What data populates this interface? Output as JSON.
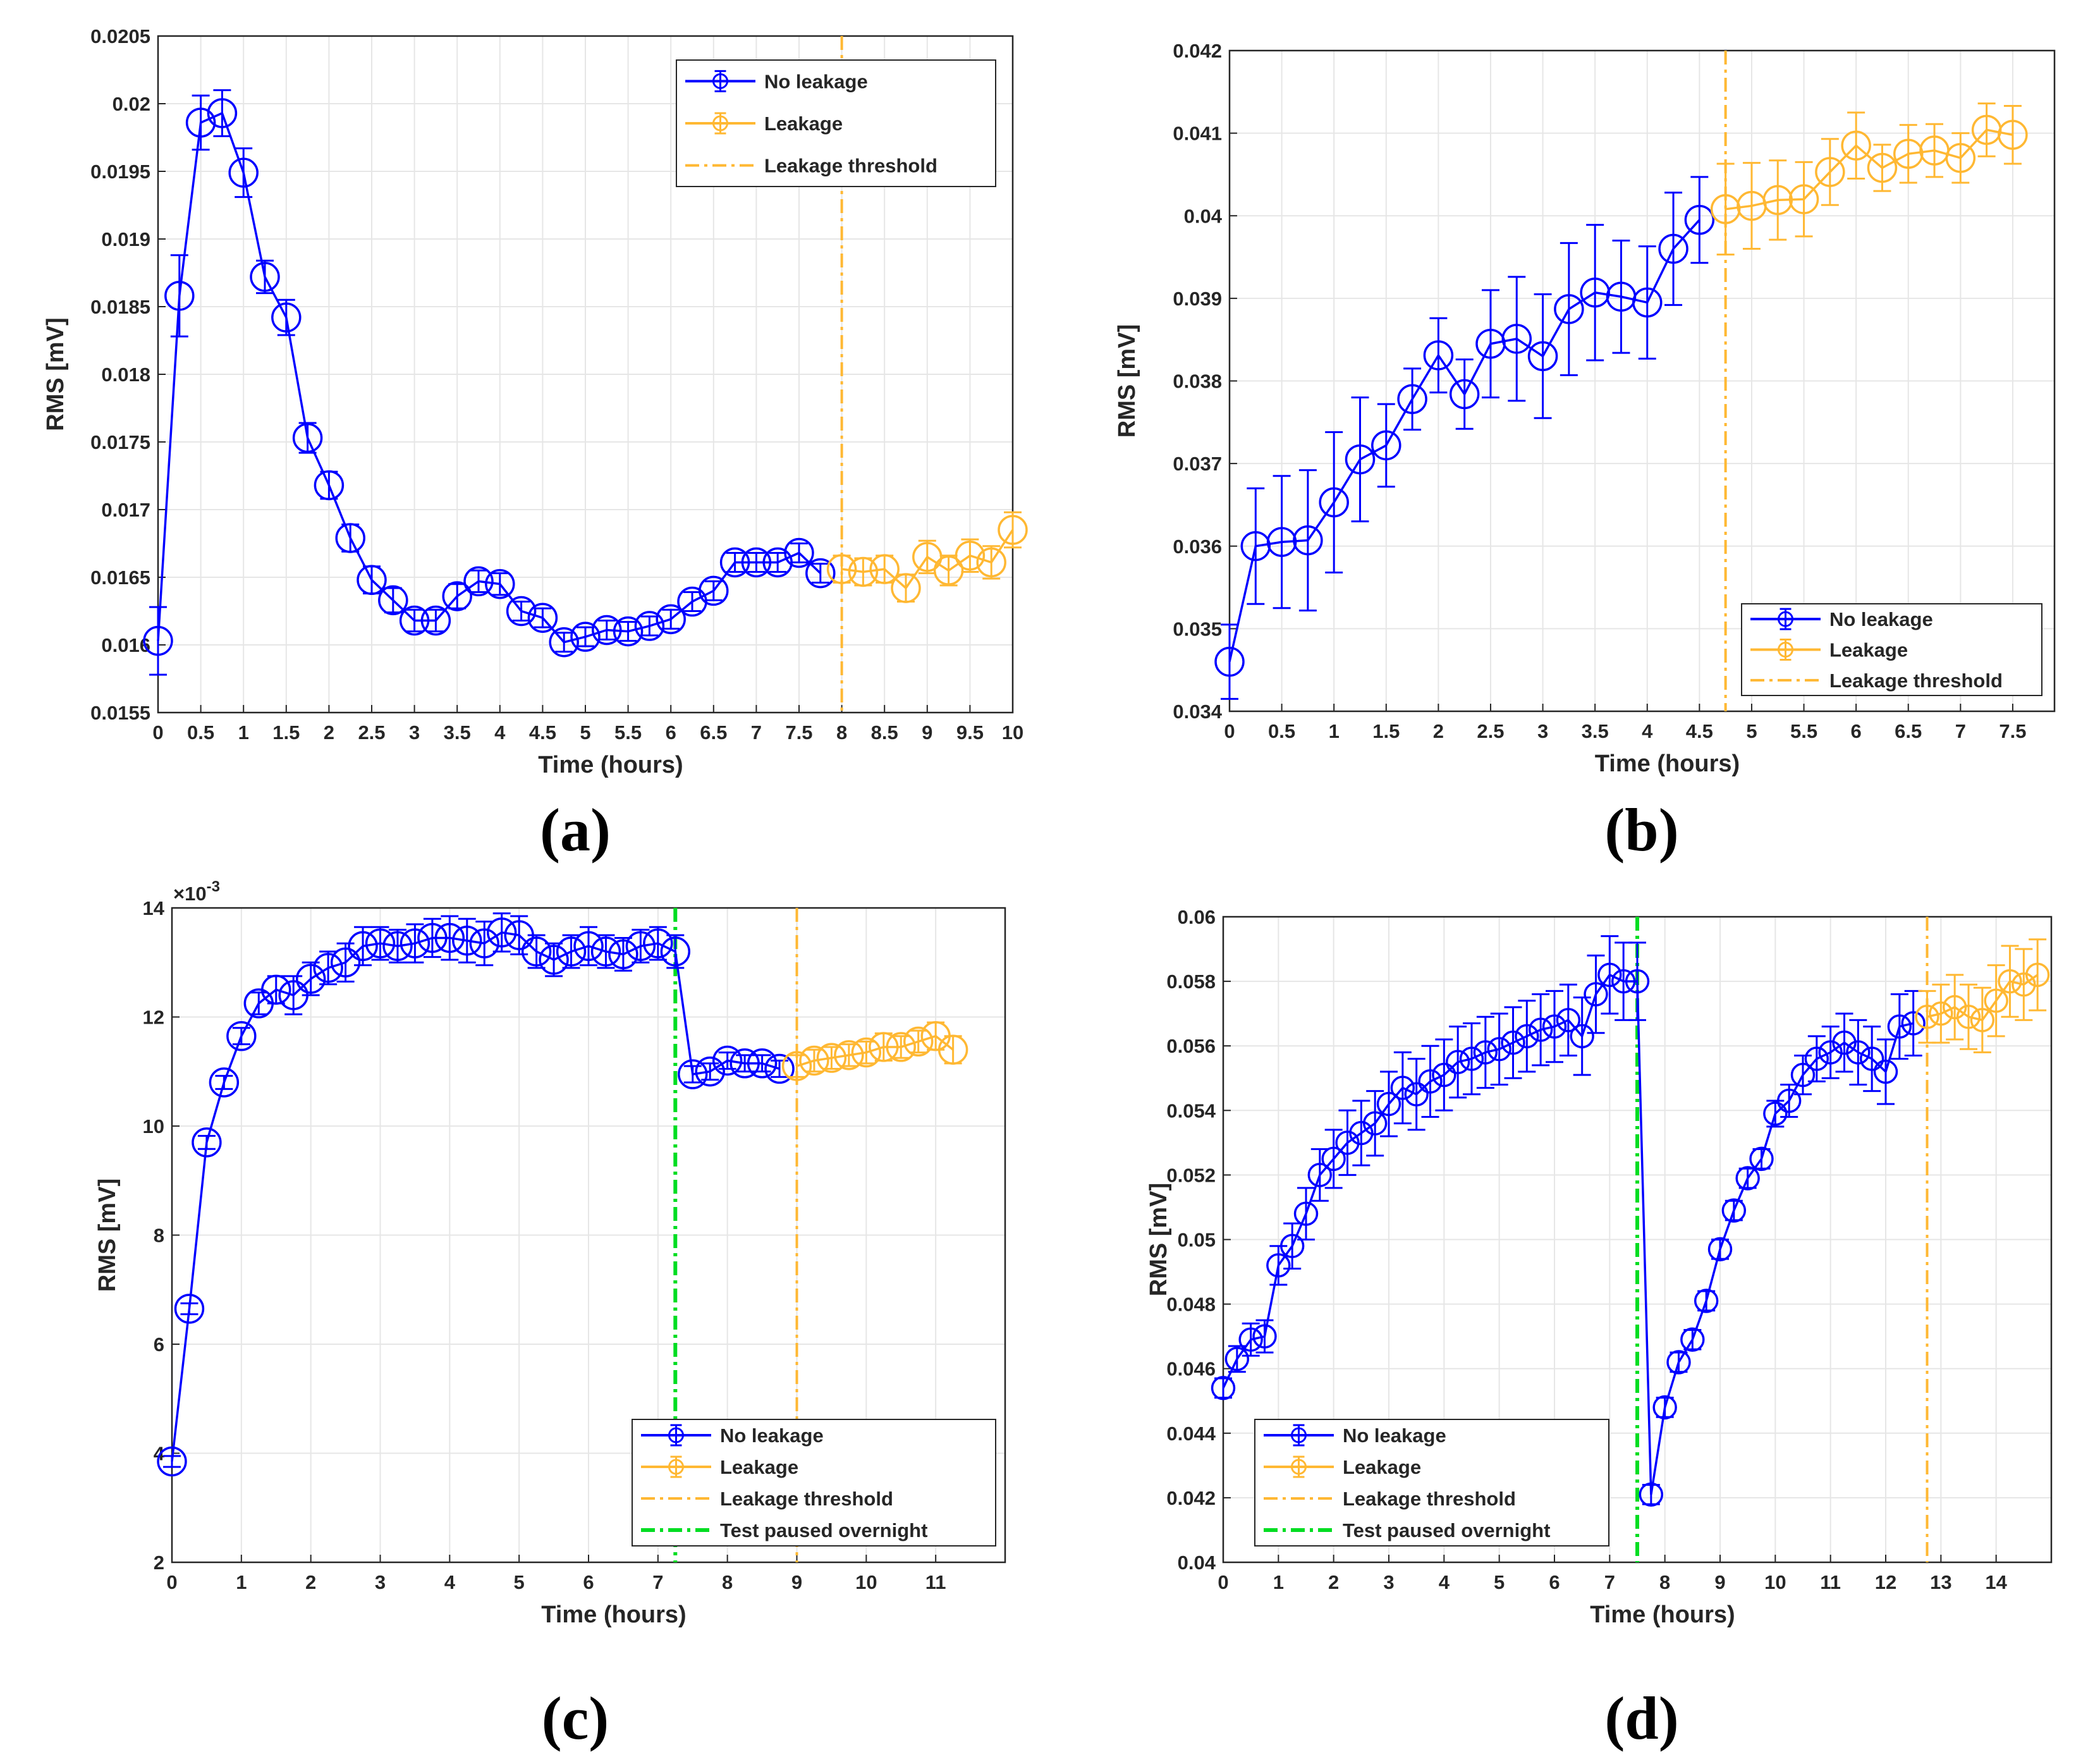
{
  "colors": {
    "no_leakage": "#0000ff",
    "leakage": "#ffb833",
    "threshold": "#ffb833",
    "paused": "#00dd22",
    "grid": "#e6e6e6",
    "axis": "#262626"
  },
  "chart_data": [
    {
      "panel": "(a)",
      "type": "line",
      "xlabel": "Time (hours)",
      "ylabel": "RMS [mV]",
      "xlim": [
        0,
        10
      ],
      "ylim": [
        0.0155,
        0.0205
      ],
      "xticks": [
        0,
        0.5,
        1,
        1.5,
        2,
        2.5,
        3,
        3.5,
        4,
        4.5,
        5,
        5.5,
        6,
        6.5,
        7,
        7.5,
        8,
        8.5,
        9,
        9.5,
        10
      ],
      "xtick_labels": [
        "0",
        "0.5",
        "1",
        "1.5",
        "2",
        "2.5",
        "3",
        "3.5",
        "4",
        "4.5",
        "5",
        "5.5",
        "6",
        "6.5",
        "7",
        "7.5",
        "8",
        "8.5",
        "9",
        "9.5",
        "10"
      ],
      "yticks": [
        0.0155,
        0.016,
        0.0165,
        0.017,
        0.0175,
        0.018,
        0.0185,
        0.019,
        0.0195,
        0.02,
        0.0205
      ],
      "ytick_labels": [
        "0.0155",
        "0.016",
        "0.0165",
        "0.017",
        "0.0175",
        "0.018",
        "0.0185",
        "0.019",
        "0.0195",
        "0.02",
        "0.0205"
      ],
      "legend_position": "top-right",
      "legend": [
        "No leakage",
        "Leakage",
        "Leakage threshold"
      ],
      "series": [
        {
          "name": "No leakage",
          "x": [
            0,
            0.25,
            0.5,
            0.75,
            1,
            1.25,
            1.5,
            1.75,
            2,
            2.25,
            2.5,
            2.75,
            3,
            3.25,
            3.5,
            3.75,
            4,
            4.25,
            4.5,
            4.75,
            5,
            5.25,
            5.5,
            5.75,
            6,
            6.25,
            6.5,
            6.75,
            7,
            7.25,
            7.5,
            7.75
          ],
          "y": [
            0.01603,
            0.01858,
            0.01986,
            0.01993,
            0.01949,
            0.01872,
            0.01842,
            0.01753,
            0.01718,
            0.01679,
            0.01648,
            0.01633,
            0.01618,
            0.01618,
            0.01636,
            0.01647,
            0.01645,
            0.01625,
            0.0162,
            0.01602,
            0.01606,
            0.01611,
            0.0161,
            0.01614,
            0.01619,
            0.01632,
            0.0164,
            0.01661,
            0.01661,
            0.01661,
            0.01668,
            0.01653
          ],
          "err": [
            0.00025,
            0.0003,
            0.0002,
            0.00017,
            0.00018,
            0.00012,
            0.00013,
            0.00011,
            0.0001,
            0.0001,
            0.0001,
            9e-05,
            8e-05,
            8e-05,
            9e-05,
            8e-05,
            8e-05,
            7e-05,
            7e-05,
            7e-05,
            7e-05,
            7e-05,
            7e-05,
            7e-05,
            7e-05,
            7e-05,
            7e-05,
            7e-05,
            7e-05,
            7e-05,
            7e-05,
            7e-05
          ]
        },
        {
          "name": "Leakage",
          "x": [
            8,
            8.25,
            8.5,
            8.75,
            9,
            9.25,
            9.5,
            9.75,
            10
          ],
          "y": [
            0.01656,
            0.01654,
            0.01656,
            0.01642,
            0.01665,
            0.01655,
            0.01666,
            0.01661,
            0.01685
          ],
          "err": [
            0.0001,
            0.0001,
            0.0001,
            0.0001,
            0.00012,
            0.00011,
            0.00012,
            0.00012,
            0.00013
          ]
        }
      ],
      "thresholds": [
        {
          "name": "Leakage threshold",
          "x": 8,
          "kind": "threshold"
        }
      ]
    },
    {
      "panel": "(b)",
      "type": "line",
      "xlabel": "Time (hours)",
      "ylabel": "RMS [mV]",
      "xlim": [
        0,
        7.9
      ],
      "ylim": [
        0.034,
        0.042
      ],
      "xticks": [
        0,
        0.5,
        1,
        1.5,
        2,
        2.5,
        3,
        3.5,
        4,
        4.5,
        5,
        5.5,
        6,
        6.5,
        7,
        7.5
      ],
      "xtick_labels": [
        "0",
        "0.5",
        "1",
        "1.5",
        "2",
        "2.5",
        "3",
        "3.5",
        "4",
        "4.5",
        "5",
        "5.5",
        "6",
        "6.5",
        "7",
        "7.5"
      ],
      "yticks": [
        0.034,
        0.035,
        0.036,
        0.037,
        0.038,
        0.039,
        0.04,
        0.041,
        0.042
      ],
      "ytick_labels": [
        "0.034",
        "0.035",
        "0.036",
        "0.037",
        "0.038",
        "0.039",
        "0.04",
        "0.041",
        "0.042"
      ],
      "legend_position": "bottom-right",
      "legend": [
        "No leakage",
        "Leakage",
        "Leakage threshold"
      ],
      "series": [
        {
          "name": "No leakage",
          "x": [
            0,
            0.25,
            0.5,
            0.75,
            1,
            1.25,
            1.5,
            1.75,
            2,
            2.25,
            2.5,
            2.75,
            3,
            3.25,
            3.5,
            3.75,
            4,
            4.25,
            4.5
          ],
          "y": [
            0.0346,
            0.036,
            0.03605,
            0.03607,
            0.03653,
            0.03705,
            0.03722,
            0.03778,
            0.03831,
            0.03784,
            0.03845,
            0.03851,
            0.0383,
            0.03887,
            0.03907,
            0.03902,
            0.03895,
            0.0396,
            0.03995
          ],
          "err": [
            0.00045,
            0.0007,
            0.0008,
            0.00085,
            0.00085,
            0.00075,
            0.0005,
            0.00037,
            0.00045,
            0.00042,
            0.00065,
            0.00075,
            0.00075,
            0.0008,
            0.00082,
            0.00068,
            0.00068,
            0.00068,
            0.00052
          ]
        },
        {
          "name": "Leakage",
          "x": [
            4.75,
            5,
            5.25,
            5.5,
            5.75,
            6,
            6.25,
            6.5,
            6.75,
            7,
            7.25,
            7.5
          ],
          "y": [
            0.04008,
            0.04012,
            0.04019,
            0.0402,
            0.04053,
            0.04085,
            0.04058,
            0.04075,
            0.04079,
            0.0407,
            0.04104,
            0.04098
          ],
          "err": [
            0.00055,
            0.00052,
            0.00048,
            0.00045,
            0.0004,
            0.0004,
            0.00028,
            0.00035,
            0.00032,
            0.0003,
            0.00032,
            0.00035
          ]
        }
      ],
      "thresholds": [
        {
          "name": "Leakage threshold",
          "x": 4.75,
          "kind": "threshold"
        }
      ]
    },
    {
      "panel": "(c)",
      "type": "line",
      "xlabel": "Time (hours)",
      "ylabel": "RMS [mV]",
      "y_multiplier": "×10",
      "y_exponent": "-3",
      "xlim": [
        0,
        12
      ],
      "ylim": [
        2,
        14
      ],
      "xticks": [
        0,
        1,
        2,
        3,
        4,
        5,
        6,
        7,
        8,
        9,
        10,
        11
      ],
      "xtick_labels": [
        "0",
        "1",
        "2",
        "3",
        "4",
        "5",
        "6",
        "7",
        "8",
        "9",
        "10",
        "11"
      ],
      "yticks": [
        2,
        4,
        6,
        8,
        10,
        12,
        14
      ],
      "ytick_labels": [
        "2",
        "4",
        "6",
        "8",
        "10",
        "12",
        "14"
      ],
      "legend_position": "bottom-right",
      "legend": [
        "No leakage",
        "Leakage",
        "Leakage threshold",
        "Test paused overnight"
      ],
      "series": [
        {
          "name": "No leakage",
          "x": [
            0,
            0.25,
            0.5,
            0.75,
            1,
            1.25,
            1.5,
            1.75,
            2,
            2.25,
            2.5,
            2.75,
            3,
            3.25,
            3.5,
            3.75,
            4,
            4.25,
            4.5,
            4.75,
            5,
            5.25,
            5.5,
            5.75,
            6,
            6.25,
            6.5,
            6.75,
            7,
            7.25,
            7.5,
            7.75,
            8,
            8.25,
            8.5,
            8.75
          ],
          "y": [
            3.85,
            6.65,
            9.7,
            10.8,
            11.65,
            12.25,
            12.5,
            12.4,
            12.7,
            12.9,
            13.0,
            13.3,
            13.35,
            13.3,
            13.35,
            13.45,
            13.45,
            13.4,
            13.35,
            13.55,
            13.5,
            13.2,
            13.05,
            13.2,
            13.3,
            13.2,
            13.15,
            13.3,
            13.35,
            13.2,
            10.95,
            11.0,
            11.2,
            11.15,
            11.15,
            11.05
          ],
          "err": [
            0.1,
            0.1,
            0.12,
            0.12,
            0.15,
            0.2,
            0.25,
            0.35,
            0.3,
            0.3,
            0.35,
            0.35,
            0.3,
            0.3,
            0.35,
            0.35,
            0.4,
            0.4,
            0.4,
            0.35,
            0.35,
            0.3,
            0.3,
            0.3,
            0.35,
            0.3,
            0.3,
            0.3,
            0.3,
            0.3,
            0.15,
            0.15,
            0.15,
            0.15,
            0.15,
            0.15
          ]
        },
        {
          "name": "Leakage",
          "x": [
            9,
            9.25,
            9.5,
            9.75,
            10,
            10.25,
            10.5,
            10.75,
            11,
            11.25
          ],
          "y": [
            11.1,
            11.2,
            11.25,
            11.3,
            11.35,
            11.45,
            11.45,
            11.55,
            11.65,
            11.4
          ],
          "err": [
            0.2,
            0.2,
            0.2,
            0.2,
            0.2,
            0.25,
            0.2,
            0.2,
            0.25,
            0.25
          ]
        }
      ],
      "thresholds": [
        {
          "name": "Test paused overnight",
          "x": 7.25,
          "kind": "paused"
        },
        {
          "name": "Leakage threshold",
          "x": 9,
          "kind": "threshold"
        }
      ]
    },
    {
      "panel": "(d)",
      "type": "line",
      "xlabel": "Time (hours)",
      "ylabel": "RMS [mV]",
      "xlim": [
        0,
        15
      ],
      "ylim": [
        0.04,
        0.06
      ],
      "xticks": [
        0,
        1,
        2,
        3,
        4,
        5,
        6,
        7,
        8,
        9,
        10,
        11,
        12,
        13,
        14
      ],
      "xtick_labels": [
        "0",
        "1",
        "2",
        "3",
        "4",
        "5",
        "6",
        "7",
        "8",
        "9",
        "10",
        "11",
        "12",
        "13",
        "14"
      ],
      "yticks": [
        0.04,
        0.042,
        0.044,
        0.046,
        0.048,
        0.05,
        0.052,
        0.054,
        0.056,
        0.058,
        0.06
      ],
      "ytick_labels": [
        "0.04",
        "0.042",
        "0.044",
        "0.046",
        "0.048",
        "0.05",
        "0.052",
        "0.054",
        "0.056",
        "0.058",
        "0.06"
      ],
      "legend_position": "bottom-left",
      "legend": [
        "No leakage",
        "Leakage",
        "Leakage threshold",
        "Test paused overnight"
      ],
      "series": [
        {
          "name": "No leakage",
          "x": [
            0,
            0.25,
            0.5,
            0.75,
            1,
            1.25,
            1.5,
            1.75,
            2,
            2.25,
            2.5,
            2.75,
            3,
            3.25,
            3.5,
            3.75,
            4,
            4.25,
            4.5,
            4.75,
            5,
            5.25,
            5.5,
            5.75,
            6,
            6.25,
            6.5,
            6.75,
            7,
            7.25,
            7.5,
            7.75,
            8,
            8.25,
            8.5,
            8.75,
            9,
            9.25,
            9.5,
            9.75,
            10,
            10.25,
            10.5,
            10.75,
            11,
            11.25,
            11.5,
            11.75,
            12,
            12.25,
            12.5
          ],
          "y": [
            0.0454,
            0.0463,
            0.0469,
            0.047,
            0.0492,
            0.0498,
            0.0508,
            0.052,
            0.0525,
            0.053,
            0.0533,
            0.0536,
            0.0542,
            0.0547,
            0.0545,
            0.0549,
            0.0551,
            0.0555,
            0.0556,
            0.0558,
            0.0559,
            0.0561,
            0.0563,
            0.0565,
            0.0566,
            0.0568,
            0.0563,
            0.0576,
            0.0582,
            0.058,
            0.058,
            0.0421,
            0.0448,
            0.0462,
            0.0469,
            0.0481,
            0.0497,
            0.0509,
            0.0519,
            0.0525,
            0.0539,
            0.0543,
            0.0551,
            0.0556,
            0.0558,
            0.0561,
            0.0558,
            0.0556,
            0.0552,
            0.0566,
            0.0567
          ],
          "err": [
            0.0003,
            0.0004,
            0.0005,
            0.0005,
            0.0006,
            0.0007,
            0.0008,
            0.0008,
            0.0009,
            0.001,
            0.001,
            0.001,
            0.001,
            0.0011,
            0.0011,
            0.0011,
            0.0011,
            0.0011,
            0.0011,
            0.0011,
            0.0011,
            0.0011,
            0.0011,
            0.0011,
            0.0011,
            0.0011,
            0.0012,
            0.0012,
            0.0012,
            0.0012,
            0.0012,
            0.0003,
            0.0003,
            0.0003,
            0.0003,
            0.0003,
            0.0003,
            0.0003,
            0.0003,
            0.0003,
            0.0004,
            0.0005,
            0.0006,
            0.0007,
            0.0008,
            0.0009,
            0.001,
            0.001,
            0.001,
            0.001,
            0.001
          ]
        },
        {
          "name": "Leakage",
          "x": [
            12.75,
            13,
            13.25,
            13.5,
            13.75,
            14,
            14.25,
            14.5,
            14.75
          ],
          "y": [
            0.0569,
            0.057,
            0.0572,
            0.0569,
            0.0568,
            0.0574,
            0.058,
            0.0579,
            0.0582
          ],
          "err": [
            0.0008,
            0.0009,
            0.001,
            0.001,
            0.001,
            0.0011,
            0.0011,
            0.0011,
            0.0011
          ]
        }
      ],
      "thresholds": [
        {
          "name": "Test paused overnight",
          "x": 7.5,
          "kind": "paused"
        },
        {
          "name": "Leakage threshold",
          "x": 12.75,
          "kind": "threshold"
        }
      ]
    }
  ]
}
